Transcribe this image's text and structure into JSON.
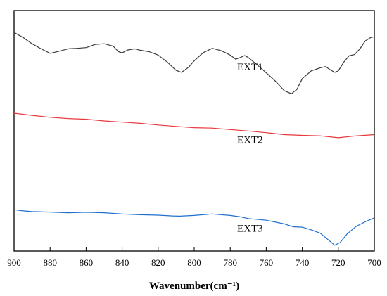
{
  "chart_data": {
    "type": "line",
    "title": "",
    "xlabel": "Wavenumber(cm⁻¹)",
    "ylabel": "",
    "xlim": [
      900,
      700
    ],
    "ylim": [
      0,
      1
    ],
    "x_reversed": true,
    "xticks": [
      900,
      880,
      860,
      840,
      820,
      800,
      780,
      760,
      740,
      720,
      700
    ],
    "yticks_shown": false,
    "grid": false,
    "legend": "none",
    "series": [
      {
        "name": "EXT1",
        "color": "#3a3a3a",
        "points": [
          [
            900,
            0.909
          ],
          [
            895,
            0.888
          ],
          [
            890,
            0.862
          ],
          [
            885,
            0.841
          ],
          [
            880,
            0.822
          ],
          [
            875,
            0.831
          ],
          [
            870,
            0.841
          ],
          [
            865,
            0.843
          ],
          [
            860,
            0.846
          ],
          [
            855,
            0.859
          ],
          [
            850,
            0.862
          ],
          [
            845,
            0.852
          ],
          [
            842,
            0.829
          ],
          [
            840,
            0.824
          ],
          [
            837,
            0.836
          ],
          [
            833,
            0.841
          ],
          [
            830,
            0.835
          ],
          [
            825,
            0.829
          ],
          [
            820,
            0.815
          ],
          [
            815,
            0.786
          ],
          [
            810,
            0.751
          ],
          [
            807,
            0.743
          ],
          [
            803,
            0.765
          ],
          [
            800,
            0.791
          ],
          [
            795,
            0.825
          ],
          [
            790,
            0.843
          ],
          [
            785,
            0.833
          ],
          [
            780,
            0.815
          ],
          [
            777,
            0.798
          ],
          [
            775,
            0.803
          ],
          [
            772,
            0.813
          ],
          [
            770,
            0.805
          ],
          [
            765,
            0.774
          ],
          [
            760,
            0.741
          ],
          [
            755,
            0.707
          ],
          [
            750,
            0.667
          ],
          [
            746,
            0.654
          ],
          [
            743,
            0.672
          ],
          [
            740,
            0.717
          ],
          [
            735,
            0.749
          ],
          [
            730,
            0.762
          ],
          [
            727,
            0.767
          ],
          [
            725,
            0.756
          ],
          [
            722,
            0.743
          ],
          [
            720,
            0.749
          ],
          [
            717,
            0.785
          ],
          [
            714,
            0.812
          ],
          [
            711,
            0.817
          ],
          [
            708,
            0.841
          ],
          [
            705,
            0.874
          ],
          [
            702,
            0.888
          ],
          [
            700,
            0.891
          ]
        ]
      },
      {
        "name": "EXT2",
        "color": "#e8383d",
        "points": [
          [
            900,
            0.573
          ],
          [
            890,
            0.564
          ],
          [
            880,
            0.556
          ],
          [
            870,
            0.551
          ],
          [
            860,
            0.548
          ],
          [
            850,
            0.541
          ],
          [
            840,
            0.536
          ],
          [
            830,
            0.531
          ],
          [
            820,
            0.524
          ],
          [
            810,
            0.518
          ],
          [
            800,
            0.513
          ],
          [
            790,
            0.511
          ],
          [
            780,
            0.505
          ],
          [
            770,
            0.499
          ],
          [
            760,
            0.492
          ],
          [
            750,
            0.484
          ],
          [
            740,
            0.481
          ],
          [
            730,
            0.479
          ],
          [
            720,
            0.471
          ],
          [
            710,
            0.479
          ],
          [
            700,
            0.484
          ]
        ]
      },
      {
        "name": "EXT3",
        "color": "#1f6fce",
        "points": [
          [
            900,
            0.172
          ],
          [
            895,
            0.167
          ],
          [
            890,
            0.164
          ],
          [
            880,
            0.162
          ],
          [
            870,
            0.159
          ],
          [
            860,
            0.161
          ],
          [
            850,
            0.159
          ],
          [
            840,
            0.154
          ],
          [
            830,
            0.151
          ],
          [
            820,
            0.149
          ],
          [
            812,
            0.146
          ],
          [
            808,
            0.145
          ],
          [
            800,
            0.148
          ],
          [
            790,
            0.154
          ],
          [
            780,
            0.148
          ],
          [
            775,
            0.143
          ],
          [
            770,
            0.135
          ],
          [
            760,
            0.128
          ],
          [
            750,
            0.113
          ],
          [
            745,
            0.101
          ],
          [
            740,
            0.099
          ],
          [
            735,
            0.088
          ],
          [
            730,
            0.074
          ],
          [
            725,
            0.043
          ],
          [
            722,
            0.024
          ],
          [
            719,
            0.035
          ],
          [
            715,
            0.072
          ],
          [
            710,
            0.103
          ],
          [
            705,
            0.122
          ],
          [
            700,
            0.138
          ]
        ]
      }
    ],
    "annotations": [
      {
        "text": "EXT1",
        "x": 769,
        "y": 0.752,
        "series": "EXT1"
      },
      {
        "text": "EXT2",
        "x": 769,
        "y": 0.449,
        "series": "EXT2"
      },
      {
        "text": "EXT3",
        "x": 769,
        "y": 0.081,
        "series": "EXT3"
      }
    ]
  }
}
